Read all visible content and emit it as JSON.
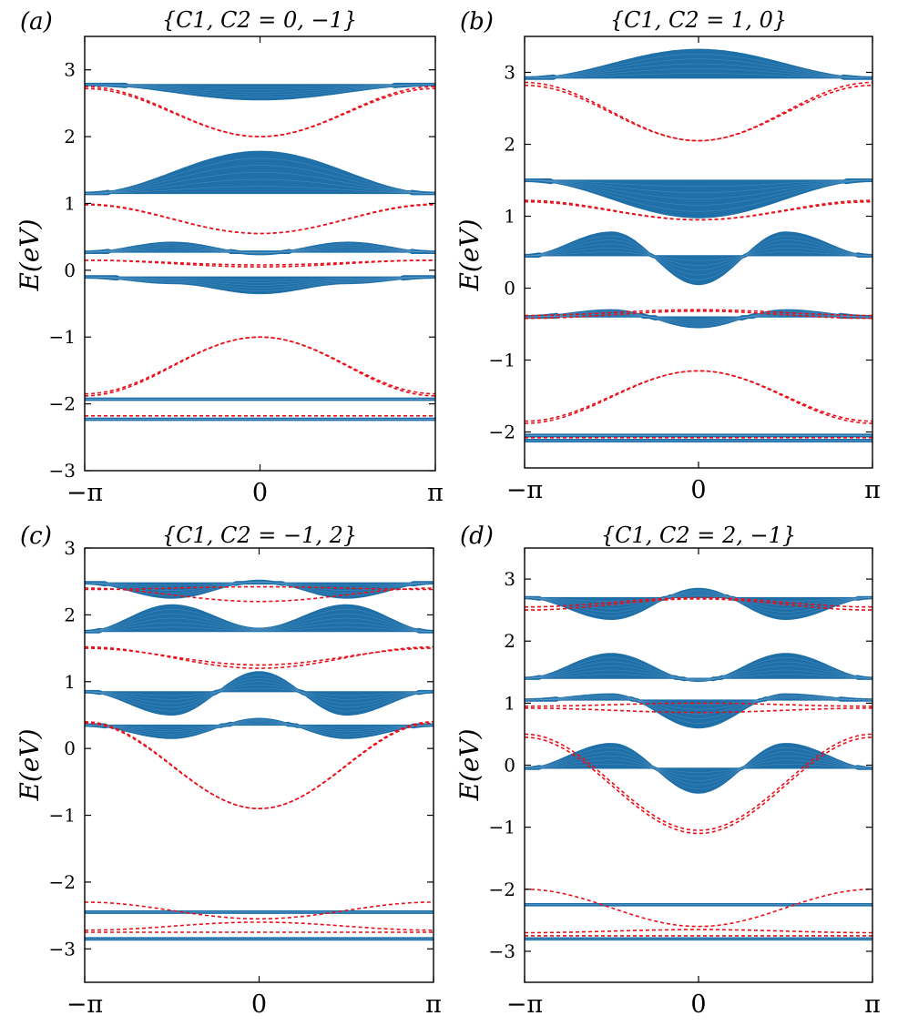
{
  "figure": {
    "colors": {
      "band": "#1f6fa8",
      "edge": "#e8101a",
      "axis": "#000000"
    }
  },
  "chart_data": [
    {
      "type": "line",
      "panel_label": "(a)",
      "title": "{C1, C2 = 0, −1}",
      "xlabel": "",
      "ylabel": "E(eV)",
      "xlim": [
        -3.14159,
        3.14159
      ],
      "ylim": [
        -3,
        3.5
      ],
      "xticks": [
        {
          "value": -3.14159,
          "label": "−π"
        },
        {
          "value": 0,
          "label": "0"
        },
        {
          "value": 3.14159,
          "label": "π"
        }
      ],
      "yticks": [
        {
          "value": -3,
          "label": "−3"
        },
        {
          "value": -2,
          "label": "−2"
        },
        {
          "value": -1,
          "label": "−1"
        },
        {
          "value": 0,
          "label": "0"
        },
        {
          "value": 1,
          "label": "1"
        },
        {
          "value": 2,
          "label": "2"
        },
        {
          "value": 3,
          "label": "3"
        }
      ],
      "bands": [
        {
          "edge": 2.78,
          "center": 2.55
        },
        {
          "edge": 1.15,
          "center": 1.78
        },
        {
          "edge": 0.27,
          "center": 0.25,
          "edge2": 0.42
        },
        {
          "edge": -0.1,
          "center": -0.35,
          "edge2": -0.2
        },
        {
          "edge": -1.93,
          "center": -1.93
        },
        {
          "edge": -2.23,
          "center": -2.23
        }
      ],
      "edge_states": [
        {
          "y_edge": 2.72,
          "y_center": 2.0
        },
        {
          "y_edge": 2.75,
          "y_center": 2.0
        },
        {
          "y_edge": 0.98,
          "y_center": 0.55
        },
        {
          "y_edge": 0.99,
          "y_center": 0.55
        },
        {
          "y_edge": 0.15,
          "y_center": 0.05
        },
        {
          "y_edge": 0.15,
          "y_center": 0.08
        },
        {
          "y_edge": -1.85,
          "y_center": -1.0
        },
        {
          "y_edge": -1.88,
          "y_center": -1.0
        },
        {
          "y_edge": -2.18,
          "y_center": -2.18
        }
      ]
    },
    {
      "type": "line",
      "panel_label": "(b)",
      "title": "{C1, C2 = 1, 0}",
      "xlabel": "",
      "ylabel": "E(eV)",
      "xlim": [
        -3.14159,
        3.14159
      ],
      "ylim": [
        -2.5,
        3.5
      ],
      "xticks": [
        {
          "value": -3.14159,
          "label": "−π"
        },
        {
          "value": 0,
          "label": "0"
        },
        {
          "value": 3.14159,
          "label": "π"
        }
      ],
      "yticks": [
        {
          "value": -2,
          "label": "−2"
        },
        {
          "value": -1,
          "label": "−1"
        },
        {
          "value": 0,
          "label": "0"
        },
        {
          "value": 1,
          "label": "1"
        },
        {
          "value": 2,
          "label": "2"
        },
        {
          "value": 3,
          "label": "3"
        }
      ],
      "bands": [
        {
          "edge": 2.92,
          "center": 3.32
        },
        {
          "edge": 1.5,
          "center": 0.98
        },
        {
          "edge": 0.45,
          "center": 0.05,
          "edge2": 0.78
        },
        {
          "edge": -0.4,
          "center": -0.55,
          "edge2": -0.3
        },
        {
          "edge": -2.05,
          "center": -2.05
        },
        {
          "edge": -2.12,
          "center": -2.12
        }
      ],
      "edge_states": [
        {
          "y_edge": 2.82,
          "y_center": 2.05
        },
        {
          "y_edge": 2.86,
          "y_center": 2.05
        },
        {
          "y_edge": 1.2,
          "y_center": 0.95
        },
        {
          "y_edge": 1.22,
          "y_center": 0.95
        },
        {
          "y_edge": -0.38,
          "y_center": -0.3
        },
        {
          "y_edge": -0.42,
          "y_center": -0.32
        },
        {
          "y_edge": -1.85,
          "y_center": -1.15
        },
        {
          "y_edge": -1.88,
          "y_center": -1.15
        },
        {
          "y_edge": -2.08,
          "y_center": -2.08
        }
      ]
    },
    {
      "type": "line",
      "panel_label": "(c)",
      "title": "{C1, C2 = −1, 2}",
      "xlabel": "",
      "ylabel": "E(eV)",
      "xlim": [
        -3.14159,
        3.14159
      ],
      "ylim": [
        -3.5,
        3
      ],
      "xticks": [
        {
          "value": -3.14159,
          "label": "−π"
        },
        {
          "value": 0,
          "label": "0"
        },
        {
          "value": 3.14159,
          "label": "π"
        }
      ],
      "yticks": [
        {
          "value": -3,
          "label": "−3"
        },
        {
          "value": -2,
          "label": "−2"
        },
        {
          "value": -1,
          "label": "−1"
        },
        {
          "value": 0,
          "label": "0"
        },
        {
          "value": 1,
          "label": "1"
        },
        {
          "value": 2,
          "label": "2"
        },
        {
          "value": 3,
          "label": "3"
        }
      ],
      "bands": [
        {
          "edge": 2.48,
          "center": 2.5,
          "edge2": 2.25
        },
        {
          "edge": 1.75,
          "center": 1.8,
          "edge2": 2.15
        },
        {
          "edge": 0.85,
          "center": 1.15,
          "edge2": 0.5
        },
        {
          "edge": 0.35,
          "center": 0.45,
          "edge2": 0.15
        },
        {
          "edge": -2.45,
          "center": -2.45
        },
        {
          "edge": -2.85,
          "center": -2.85
        }
      ],
      "edge_states": [
        {
          "y_edge": 2.38,
          "y_center": 2.42
        },
        {
          "y_edge": 2.4,
          "y_center": 2.2
        },
        {
          "y_edge": 1.52,
          "y_center": 1.2
        },
        {
          "y_edge": 1.5,
          "y_center": 1.25
        },
        {
          "y_edge": 0.4,
          "y_center": -0.9
        },
        {
          "y_edge": 0.38,
          "y_center": -0.9
        },
        {
          "y_edge": -2.3,
          "y_center": -2.55
        },
        {
          "y_edge": -2.72,
          "y_center": -2.6
        },
        {
          "y_edge": -2.75,
          "y_center": -2.75
        }
      ]
    },
    {
      "type": "line",
      "panel_label": "(d)",
      "title": "{C1, C2 = 2, −1}",
      "xlabel": "",
      "ylabel": "E(eV)",
      "xlim": [
        -3.14159,
        3.14159
      ],
      "ylim": [
        -3.5,
        3.5
      ],
      "xticks": [
        {
          "value": -3.14159,
          "label": "−π"
        },
        {
          "value": 0,
          "label": "0"
        },
        {
          "value": 3.14159,
          "label": "π"
        }
      ],
      "yticks": [
        {
          "value": -3,
          "label": "−3"
        },
        {
          "value": -2,
          "label": "−2"
        },
        {
          "value": -1,
          "label": "−1"
        },
        {
          "value": 0,
          "label": "0"
        },
        {
          "value": 1,
          "label": "1"
        },
        {
          "value": 2,
          "label": "2"
        },
        {
          "value": 3,
          "label": "3"
        }
      ],
      "bands": [
        {
          "edge": 2.7,
          "center": 2.85,
          "edge2": 2.35
        },
        {
          "edge": 1.4,
          "center": 1.35,
          "edge2": 1.8
        },
        {
          "edge": 1.05,
          "center": 0.6,
          "edge2": 1.15
        },
        {
          "edge": -0.05,
          "center": -0.45,
          "edge2": 0.35
        },
        {
          "edge": -2.25,
          "center": -2.25
        },
        {
          "edge": -2.8,
          "center": -2.8
        }
      ],
      "edge_states": [
        {
          "y_edge": 2.5,
          "y_center": 2.68
        },
        {
          "y_edge": 2.55,
          "y_center": 2.7
        },
        {
          "y_edge": 0.95,
          "y_center": 1.0
        },
        {
          "y_edge": 0.92,
          "y_center": 0.85
        },
        {
          "y_edge": 0.5,
          "y_center": -1.05
        },
        {
          "y_edge": 0.45,
          "y_center": -1.1
        },
        {
          "y_edge": -2.0,
          "y_center": -2.6
        },
        {
          "y_edge": -2.7,
          "y_center": -2.65
        },
        {
          "y_edge": -2.75,
          "y_center": -2.75
        }
      ]
    }
  ]
}
